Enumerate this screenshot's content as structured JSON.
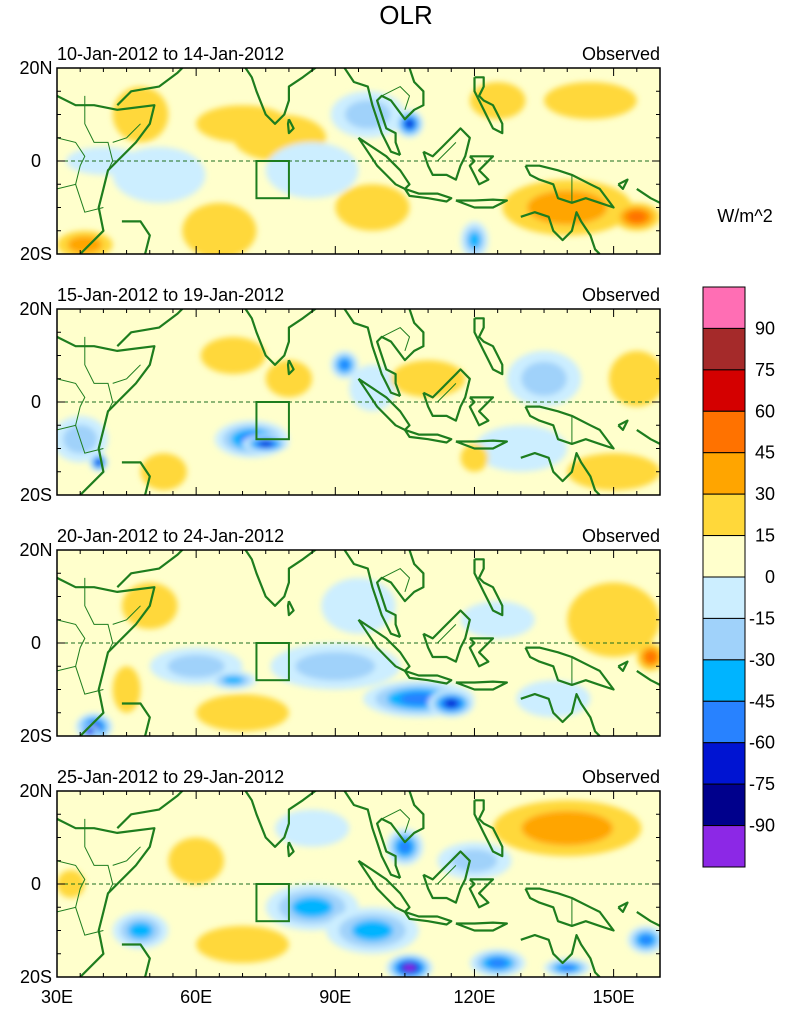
{
  "figure": {
    "title": "OLR",
    "units_label": "W/m^2"
  },
  "axes": {
    "y_ticks": [
      "20N",
      "0",
      "20S"
    ],
    "x_ticks": [
      "30E",
      "60E",
      "90E",
      "120E",
      "150E"
    ],
    "x_values": [
      30,
      60,
      90,
      120,
      150
    ],
    "lon_range": [
      30,
      160
    ],
    "lat_range": [
      -20,
      20
    ]
  },
  "panels": [
    {
      "period": "10-Jan-2012 to 14-Jan-2012",
      "kind": "Observed"
    },
    {
      "period": "15-Jan-2012 to 19-Jan-2012",
      "kind": "Observed"
    },
    {
      "period": "20-Jan-2012 to 24-Jan-2012",
      "kind": "Observed"
    },
    {
      "period": "25-Jan-2012 to 29-Jan-2012",
      "kind": "Observed"
    }
  ],
  "colorbar": {
    "labels": [
      "90",
      "75",
      "60",
      "45",
      "30",
      "15",
      "0",
      "-15",
      "-30",
      "-45",
      "-60",
      "-75",
      "-90"
    ],
    "colors": [
      "#ff6eb4",
      "#a52a2a",
      "#d40000",
      "#ff7200",
      "#ffa500",
      "#ffd83a",
      "#ffffcc",
      "#cceeff",
      "#a0d2fa",
      "#00b4ff",
      "#2882ff",
      "#0014d2",
      "#00008c",
      "#8c28e6"
    ]
  },
  "chart_data": {
    "type": "heatmap",
    "title": "OLR",
    "legend_title": "W/m^2",
    "levels": [
      -90,
      -75,
      -60,
      -45,
      -30,
      -15,
      0,
      15,
      30,
      45,
      60,
      75,
      90
    ],
    "colors": {
      "pos90": "#ff6eb4",
      "pos75": "#a52a2a",
      "pos60": "#d40000",
      "pos45": "#ff7200",
      "pos30": "#ffa500",
      "pos15": "#ffd83a",
      "zero": "#ffffcc",
      "neg15": "#cceeff",
      "neg30": "#a0d2fa",
      "neg45": "#00b4ff",
      "neg60": "#2882ff",
      "neg75": "#0014d2",
      "neg90": "#00008c",
      "negmax": "#8c28e6",
      "coast": "#1e7d1e"
    },
    "anomaly_features": [
      [
        {
          "lon": 40,
          "lat": 0,
          "value": -20,
          "rx": 8,
          "ry": 3
        },
        {
          "lon": 52,
          "lat": -3,
          "value": -25,
          "rx": 10,
          "ry": 6
        },
        {
          "lon": 65,
          "lat": -15,
          "value": 20,
          "rx": 8,
          "ry": 6
        },
        {
          "lon": 48,
          "lat": 10,
          "value": 15,
          "rx": 6,
          "ry": 6
        },
        {
          "lon": 70,
          "lat": 8,
          "value": 20,
          "rx": 10,
          "ry": 4
        },
        {
          "lon": 78,
          "lat": 5,
          "value": 15,
          "rx": 10,
          "ry": 5
        },
        {
          "lon": 85,
          "lat": -2,
          "value": -20,
          "rx": 10,
          "ry": 6
        },
        {
          "lon": 97,
          "lat": 10,
          "value": -40,
          "rx": 8,
          "ry": 5
        },
        {
          "lon": 106,
          "lat": 8,
          "value": -75,
          "rx": 3,
          "ry": 3
        },
        {
          "lon": 98,
          "lat": -10,
          "value": 20,
          "rx": 8,
          "ry": 5
        },
        {
          "lon": 120,
          "lat": -17,
          "value": -50,
          "rx": 3,
          "ry": 4
        },
        {
          "lon": 140,
          "lat": -10,
          "value": 40,
          "rx": 14,
          "ry": 6
        },
        {
          "lon": 155,
          "lat": -12,
          "value": 55,
          "rx": 5,
          "ry": 3
        },
        {
          "lon": 125,
          "lat": 13,
          "value": 15,
          "rx": 6,
          "ry": 4
        },
        {
          "lon": 145,
          "lat": 13,
          "value": 15,
          "rx": 10,
          "ry": 4
        },
        {
          "lon": 36,
          "lat": -18,
          "value": 40,
          "rx": 6,
          "ry": 3
        }
      ],
      [
        {
          "lon": 35,
          "lat": -8,
          "value": -30,
          "rx": 6,
          "ry": 5
        },
        {
          "lon": 39,
          "lat": -13,
          "value": -75,
          "rx": 2,
          "ry": 2
        },
        {
          "lon": 72,
          "lat": -8,
          "value": -60,
          "rx": 8,
          "ry": 4
        },
        {
          "lon": 75,
          "lat": -9,
          "value": -75,
          "rx": 5,
          "ry": 2
        },
        {
          "lon": 92,
          "lat": 8,
          "value": -60,
          "rx": 3,
          "ry": 3
        },
        {
          "lon": 98,
          "lat": 3,
          "value": -20,
          "rx": 5,
          "ry": 5
        },
        {
          "lon": 68,
          "lat": 10,
          "value": 15,
          "rx": 7,
          "ry": 4
        },
        {
          "lon": 80,
          "lat": 5,
          "value": 20,
          "rx": 5,
          "ry": 4
        },
        {
          "lon": 110,
          "lat": 5,
          "value": 20,
          "rx": 8,
          "ry": 4
        },
        {
          "lon": 135,
          "lat": 5,
          "value": -30,
          "rx": 8,
          "ry": 6
        },
        {
          "lon": 130,
          "lat": -10,
          "value": -20,
          "rx": 10,
          "ry": 5
        },
        {
          "lon": 155,
          "lat": 5,
          "value": 20,
          "rx": 6,
          "ry": 6
        },
        {
          "lon": 150,
          "lat": -15,
          "value": 15,
          "rx": 10,
          "ry": 4
        },
        {
          "lon": 53,
          "lat": -15,
          "value": 15,
          "rx": 5,
          "ry": 4
        },
        {
          "lon": 120,
          "lat": -12,
          "value": 15,
          "rx": 3,
          "ry": 3
        }
      ],
      [
        {
          "lon": 38,
          "lat": -18,
          "value": -75,
          "rx": 4,
          "ry": 3
        },
        {
          "lon": 37,
          "lat": -19,
          "value": -95,
          "rx": 2,
          "ry": 1.5
        },
        {
          "lon": 45,
          "lat": -10,
          "value": 20,
          "rx": 3,
          "ry": 5
        },
        {
          "lon": 60,
          "lat": -5,
          "value": -30,
          "rx": 10,
          "ry": 4
        },
        {
          "lon": 68,
          "lat": -8,
          "value": -45,
          "rx": 5,
          "ry": 2
        },
        {
          "lon": 90,
          "lat": -5,
          "value": -30,
          "rx": 14,
          "ry": 5
        },
        {
          "lon": 108,
          "lat": -12,
          "value": -65,
          "rx": 12,
          "ry": 4
        },
        {
          "lon": 115,
          "lat": -13,
          "value": -80,
          "rx": 5,
          "ry": 3
        },
        {
          "lon": 95,
          "lat": 8,
          "value": -20,
          "rx": 8,
          "ry": 6
        },
        {
          "lon": 125,
          "lat": 5,
          "value": -25,
          "rx": 8,
          "ry": 4
        },
        {
          "lon": 150,
          "lat": 5,
          "value": 25,
          "rx": 10,
          "ry": 8
        },
        {
          "lon": 158,
          "lat": -3,
          "value": 55,
          "rx": 3,
          "ry": 3
        },
        {
          "lon": 70,
          "lat": -15,
          "value": 20,
          "rx": 10,
          "ry": 4
        },
        {
          "lon": 50,
          "lat": 8,
          "value": 15,
          "rx": 6,
          "ry": 5
        },
        {
          "lon": 137,
          "lat": -12,
          "value": -25,
          "rx": 8,
          "ry": 4
        }
      ],
      [
        {
          "lon": 33,
          "lat": 0,
          "value": 20,
          "rx": 3,
          "ry": 3
        },
        {
          "lon": 48,
          "lat": -10,
          "value": -50,
          "rx": 6,
          "ry": 4
        },
        {
          "lon": 85,
          "lat": -5,
          "value": -55,
          "rx": 10,
          "ry": 5
        },
        {
          "lon": 98,
          "lat": -10,
          "value": -45,
          "rx": 10,
          "ry": 5
        },
        {
          "lon": 106,
          "lat": -18,
          "value": -95,
          "rx": 5,
          "ry": 3
        },
        {
          "lon": 105,
          "lat": 8,
          "value": -70,
          "rx": 4,
          "ry": 4
        },
        {
          "lon": 125,
          "lat": -17,
          "value": -70,
          "rx": 6,
          "ry": 3
        },
        {
          "lon": 140,
          "lat": -18,
          "value": -60,
          "rx": 5,
          "ry": 2
        },
        {
          "lon": 157,
          "lat": -12,
          "value": -60,
          "rx": 4,
          "ry": 3
        },
        {
          "lon": 140,
          "lat": 12,
          "value": 30,
          "rx": 16,
          "ry": 6
        },
        {
          "lon": 70,
          "lat": -13,
          "value": 25,
          "rx": 10,
          "ry": 4
        },
        {
          "lon": 85,
          "lat": 12,
          "value": -25,
          "rx": 8,
          "ry": 4
        },
        {
          "lon": 60,
          "lat": 5,
          "value": 15,
          "rx": 6,
          "ry": 5
        },
        {
          "lon": 120,
          "lat": 5,
          "value": -30,
          "rx": 8,
          "ry": 4
        }
      ]
    ],
    "box_region": {
      "lon": [
        73,
        80
      ],
      "lat": [
        -8,
        0
      ]
    }
  }
}
